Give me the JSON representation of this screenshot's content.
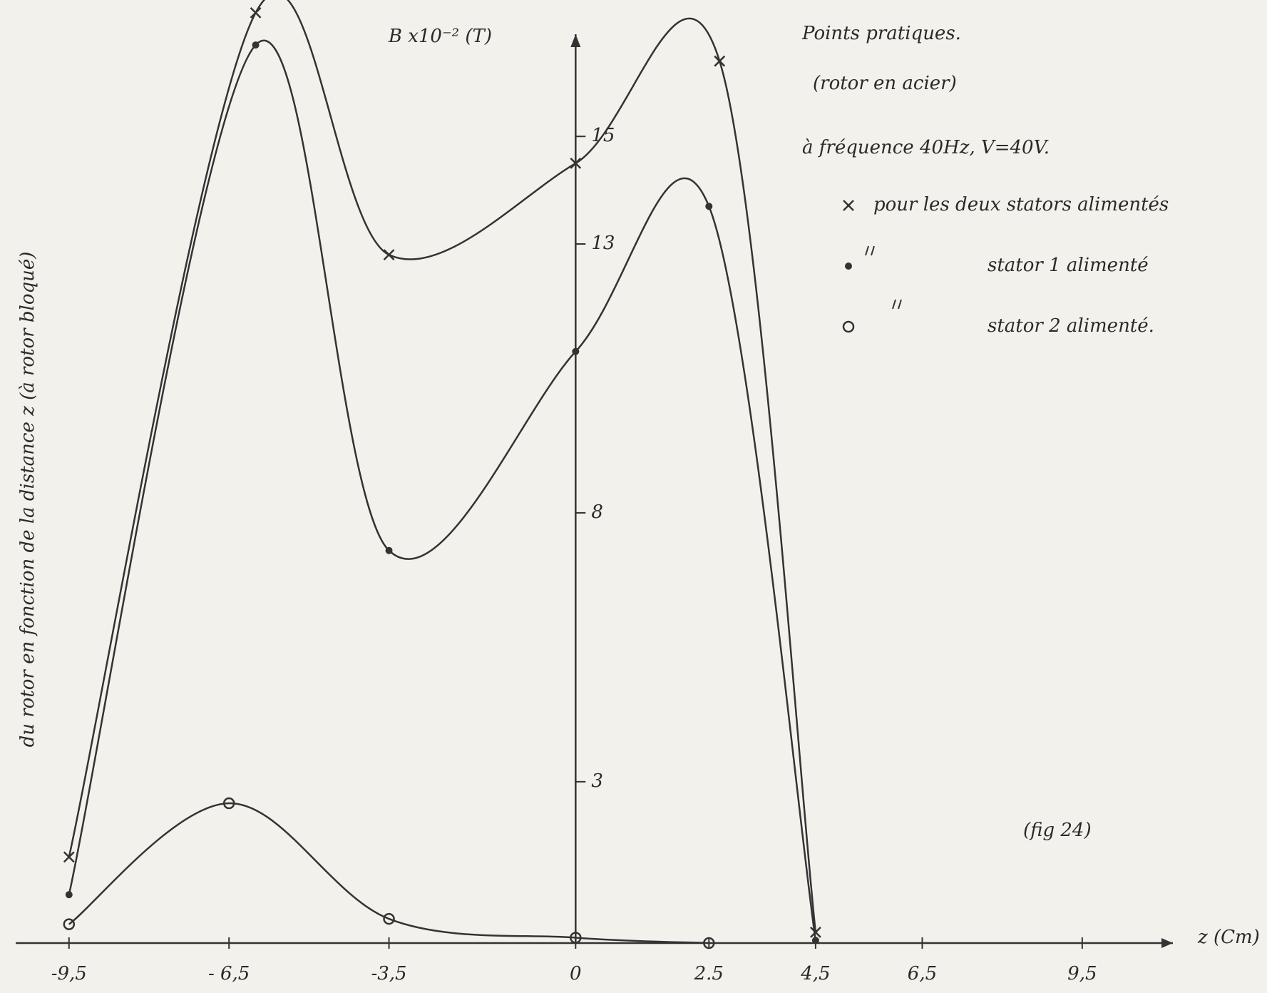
{
  "chart_data": {
    "type": "line",
    "y_label": "B x10⁻² (T)",
    "x_label": "z (Cm)",
    "side_title": "du rotor en fonction de la distance z (à rotor bloqué)",
    "legend_title": "Points pratiques.",
    "legend_subtitle": "(rotor en acier)",
    "conditions": "à fréquence 40Hz, V=40V.",
    "annotation": "(fig 24)",
    "xlim": [
      -10.5,
      11.2
    ],
    "ylim": [
      0,
      16.9
    ],
    "xticks": [
      {
        "value": -9.5,
        "label": "-9,5"
      },
      {
        "value": -6.5,
        "label": "- 6,5"
      },
      {
        "value": -3.5,
        "label": "-3,5"
      },
      0,
      2.5,
      {
        "value": 4.5,
        "label": "4,5"
      },
      {
        "value": 6.5,
        "label": "6,5"
      },
      {
        "value": 9.5,
        "label": "9,5"
      }
    ],
    "yticks": [
      3,
      8,
      13,
      15
    ],
    "series": [
      {
        "name": "pour les deux stators alimentés",
        "marker": "x",
        "color": "#333333",
        "x": [
          -9.5,
          -6,
          -3.5,
          0,
          2.7,
          4.5
        ],
        "values": [
          1.6,
          17.3,
          12.8,
          14.5,
          16.4,
          0.2
        ]
      },
      {
        "name": "stator 1 alimenté",
        "marker": "dot",
        "color": "#333333",
        "x": [
          -9.5,
          -6,
          -3.5,
          0,
          2.5,
          4.5
        ],
        "values": [
          0.9,
          16.7,
          7.3,
          11,
          13.7,
          0.05
        ]
      },
      {
        "name": "stator 2 alimenté.",
        "marker": "circle",
        "color": "#333333",
        "x": [
          -9.5,
          -6.5,
          -3.5,
          0,
          2.5
        ],
        "values": [
          0.35,
          2.6,
          0.45,
          0.1,
          0
        ]
      }
    ]
  }
}
